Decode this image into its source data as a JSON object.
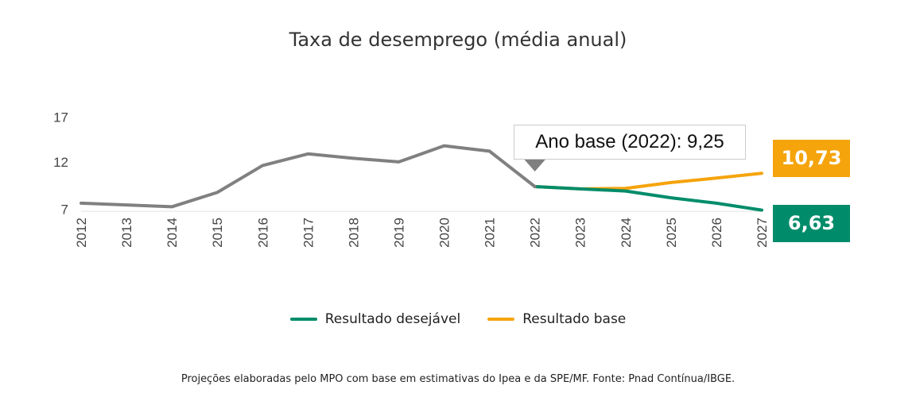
{
  "chart_data": {
    "type": "line",
    "title": "Taxa de desemprego (média anual)",
    "x": [
      "2012",
      "2013",
      "2014",
      "2015",
      "2016",
      "2017",
      "2018",
      "2019",
      "2020",
      "2021",
      "2022",
      "2023",
      "2024",
      "2025",
      "2026",
      "2027"
    ],
    "yticks": [
      7,
      12,
      17
    ],
    "ylim": [
      6.5,
      17
    ],
    "grid": false,
    "legend_position": "bottom",
    "series": [
      {
        "key": "historico",
        "color": "#808080",
        "values": [
          7.4,
          7.2,
          7.0,
          8.6,
          11.6,
          12.9,
          12.4,
          12.0,
          13.8,
          13.2,
          9.25,
          null,
          null,
          null,
          null,
          null
        ]
      },
      {
        "name": "Resultado base",
        "color": "#F5A40C",
        "values": [
          null,
          null,
          null,
          null,
          null,
          null,
          null,
          null,
          null,
          null,
          9.25,
          9.0,
          9.05,
          9.7,
          10.2,
          10.73
        ]
      },
      {
        "name": "Resultado desejável",
        "color": "#008C6A",
        "values": [
          null,
          null,
          null,
          null,
          null,
          null,
          null,
          null,
          null,
          null,
          9.25,
          9.0,
          8.75,
          8.0,
          7.4,
          6.63
        ]
      }
    ],
    "annotations": {
      "base_year": "Ano base (2022): 9,25",
      "base_end": "10,73",
      "desired_end": "6,63"
    },
    "legend": [
      "Resultado desejável",
      "Resultado base"
    ]
  },
  "source": "Projeções elaboradas pelo MPO com base em estimativas do Ipea e da SPE/MF. Fonte: Pnad Contínua/IBGE."
}
